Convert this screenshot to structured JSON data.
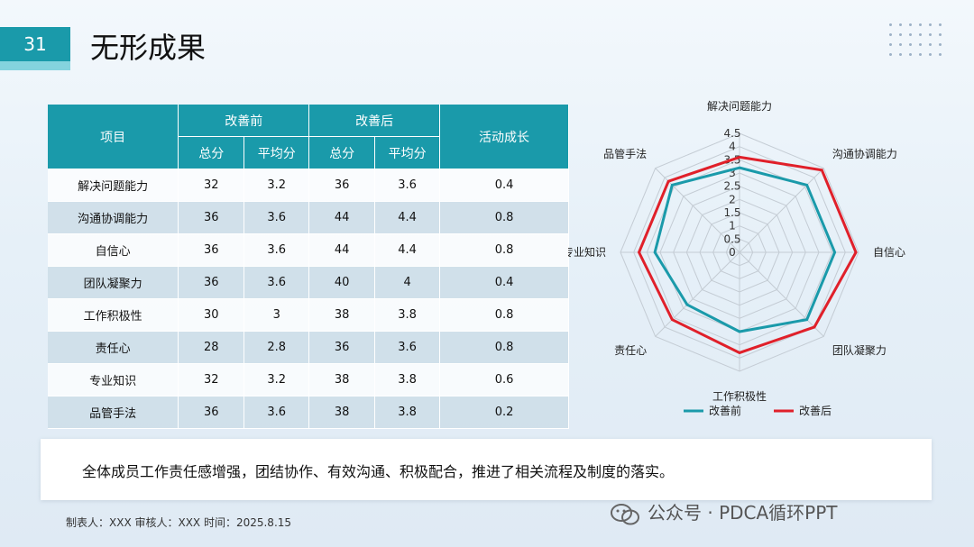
{
  "page_number": "31",
  "title": "无形成果",
  "table": {
    "headers": {
      "item": "项目",
      "before_group": "改善前",
      "after_group": "改善后",
      "growth": "活动成长",
      "total": "总分",
      "average": "平均分"
    },
    "rows": [
      {
        "item": "解决问题能力",
        "before_total": "32",
        "before_avg": "3.2",
        "after_total": "36",
        "after_avg": "3.6",
        "growth": "0.4"
      },
      {
        "item": "沟通协调能力",
        "before_total": "36",
        "before_avg": "3.6",
        "after_total": "44",
        "after_avg": "4.4",
        "growth": "0.8"
      },
      {
        "item": "自信心",
        "before_total": "36",
        "before_avg": "3.6",
        "after_total": "44",
        "after_avg": "4.4",
        "growth": "0.8"
      },
      {
        "item": "团队凝聚力",
        "before_total": "36",
        "before_avg": "3.6",
        "after_total": "40",
        "after_avg": "4",
        "growth": "0.4"
      },
      {
        "item": "工作积极性",
        "before_total": "30",
        "before_avg": "3",
        "after_total": "38",
        "after_avg": "3.8",
        "growth": "0.8"
      },
      {
        "item": "责任心",
        "before_total": "28",
        "before_avg": "2.8",
        "after_total": "36",
        "after_avg": "3.6",
        "growth": "0.8"
      },
      {
        "item": "专业知识",
        "before_total": "32",
        "before_avg": "3.2",
        "after_total": "38",
        "after_avg": "3.8",
        "growth": "0.6"
      },
      {
        "item": "品管手法",
        "before_total": "36",
        "before_avg": "3.6",
        "after_total": "38",
        "after_avg": "3.8",
        "growth": "0.2"
      }
    ]
  },
  "chart_data": {
    "type": "radar",
    "categories": [
      "解决问题能力",
      "沟通协调能力",
      "自信心",
      "团队凝聚力",
      "工作积极性",
      "责任心",
      "专业知识",
      "品管手法"
    ],
    "series": [
      {
        "name": "改善前",
        "values": [
          3.2,
          3.6,
          3.6,
          3.6,
          3,
          2.8,
          3.2,
          3.6
        ],
        "color": "#1a9aaa"
      },
      {
        "name": "改善后",
        "values": [
          3.6,
          4.4,
          4.4,
          4,
          3.8,
          3.6,
          3.8,
          3.8
        ],
        "color": "#e0202a"
      }
    ],
    "ticks": [
      "0",
      "0.5",
      "1",
      "1.5",
      "2",
      "2.5",
      "3",
      "3.5",
      "4",
      "4.5"
    ],
    "rmax": 4.5,
    "grid": true,
    "legend_position": "bottom"
  },
  "summary": "全体成员工作责任感增强，团结协作、有效沟通、积极配合，推进了相关流程及制度的落实。",
  "footer": "制表人：XXX   审核人：XXX  时间：2025.8.15",
  "watermark": "公众号 · PDCA循环PPT",
  "colors": {
    "accent": "#1a9aaa",
    "after": "#e0202a"
  }
}
